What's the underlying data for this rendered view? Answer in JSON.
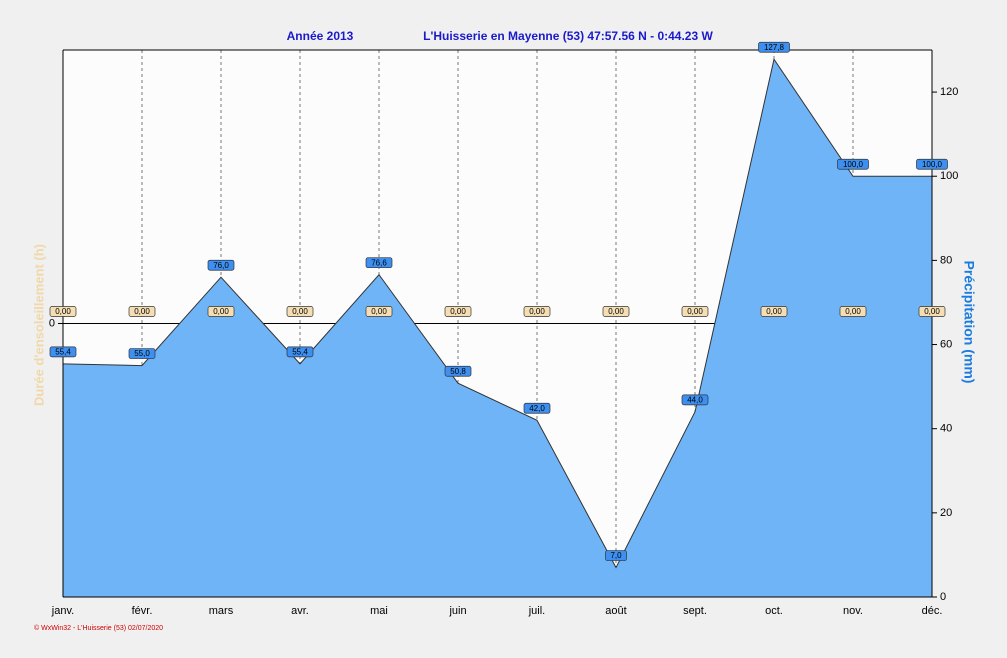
{
  "chart_data": {
    "type": "area",
    "title": "Année  2013",
    "subtitle": "L'Huisserie en Mayenne (53) 47:57.56 N - 0:44.23 W",
    "ylabel": "Durée d'ensoleillement  (h)",
    "y2label": "Précipitation  (mm)",
    "footer": "© WxWin32 - L'Huisserie (53) 02/07/2020",
    "categories": [
      "janv.",
      "févr.",
      "mars",
      "avr.",
      "mai",
      "juin",
      "juil.",
      "août",
      "sept.",
      "oct.",
      "nov.",
      "déc."
    ],
    "series": [
      {
        "name": "Durée d'ensoleillement",
        "color": "#f5deb3",
        "values": [
          0,
          0,
          0,
          0,
          0,
          0,
          0,
          0,
          0,
          0,
          0,
          0
        ],
        "value_labels": [
          "0,00",
          "0,00",
          "0,00",
          "0,00",
          "0,00",
          "0,00",
          "0,00",
          "0,00",
          "0,00",
          "0,00",
          "0,00",
          "0,00"
        ]
      },
      {
        "name": "Précipitation",
        "color": "#70b4f8",
        "axis": "y2",
        "values": [
          55.4,
          55.0,
          76.0,
          55.4,
          76.6,
          50.8,
          42.0,
          7.0,
          44.0,
          127.8,
          100.0,
          100.0
        ],
        "value_labels": [
          "55,4",
          "55,0",
          "76,0",
          "55,4",
          "76,6",
          "50,8",
          "42,0",
          "7,0",
          "44,0",
          "127,8",
          "100,0",
          "100,0"
        ]
      }
    ],
    "ylim": [
      -1,
      1
    ],
    "yticks": [
      0
    ],
    "y2lim": [
      0,
      130
    ],
    "y2ticks": [
      0,
      20,
      40,
      60,
      80,
      100,
      120
    ],
    "grid": "x"
  }
}
